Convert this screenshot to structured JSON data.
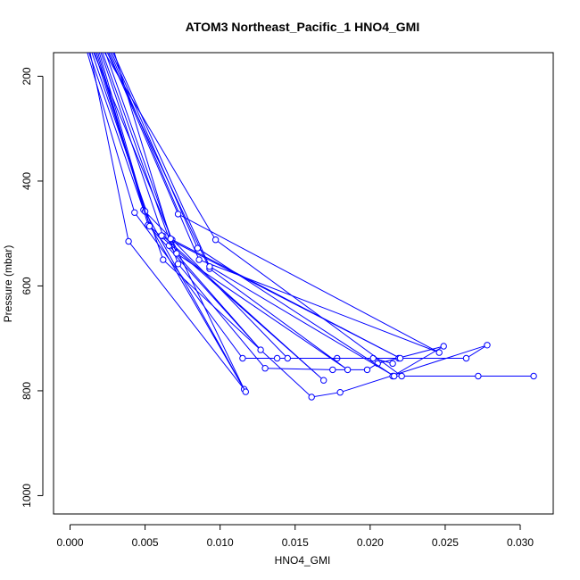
{
  "chart_data": {
    "type": "line",
    "title": "ATOM3 Northeast_Pacific_1 HNO4_GMI",
    "xlabel": "HNO4_GMI",
    "ylabel": "Pressure (mbar)",
    "xlim": [
      -0.0011,
      0.0322
    ],
    "ylim": [
      1035,
      155
    ],
    "y_reversed": true,
    "x_ticks": [
      0.0,
      0.005,
      0.01,
      0.015,
      0.02,
      0.025,
      0.03
    ],
    "x_tick_labels": [
      "0.000",
      "0.005",
      "0.010",
      "0.015",
      "0.020",
      "0.025",
      "0.030"
    ],
    "y_ticks": [
      200,
      400,
      600,
      800,
      1000
    ],
    "y_tick_labels": [
      "200",
      "400",
      "600",
      "800",
      "1000"
    ],
    "color": "#0000ff",
    "series": [
      {
        "points": [
          [
            0.0011,
            150
          ],
          [
            0.0043,
            460
          ],
          [
            0.0115,
            738
          ],
          [
            0.0138,
            738
          ],
          [
            0.0178,
            738
          ],
          [
            0.0219,
            738
          ],
          [
            0.0264,
            738
          ],
          [
            0.0278,
            713
          ],
          [
            0.018,
            803
          ],
          [
            0.0161,
            812
          ],
          [
            0.0062,
            550
          ],
          [
            0.0014,
            150
          ]
        ]
      },
      {
        "points": [
          [
            0.0012,
            150
          ],
          [
            0.0049,
            455
          ],
          [
            0.0145,
            738
          ],
          [
            0.0202,
            738
          ],
          [
            0.0215,
            748
          ]
        ]
      },
      {
        "points": [
          [
            0.0013,
            150
          ],
          [
            0.0039,
            515
          ],
          [
            0.0116,
            797
          ],
          [
            0.0068,
            512
          ],
          [
            0.0015,
            150
          ]
        ]
      },
      {
        "points": [
          [
            0.0016,
            150
          ],
          [
            0.005,
            458
          ],
          [
            0.0117,
            802
          ],
          [
            0.0053,
            484
          ],
          [
            0.0017,
            150
          ]
        ]
      },
      {
        "points": [
          [
            0.0018,
            150
          ],
          [
            0.0052,
            484
          ],
          [
            0.0127,
            722
          ],
          [
            0.0066,
            523
          ]
        ]
      },
      {
        "points": [
          [
            0.0019,
            150
          ],
          [
            0.0053,
            486
          ],
          [
            0.0169,
            780
          ],
          [
            0.0062,
            505
          ],
          [
            0.002,
            150
          ]
        ]
      },
      {
        "points": [
          [
            0.0021,
            150
          ],
          [
            0.0072,
            558
          ],
          [
            0.013,
            757
          ],
          [
            0.0175,
            760
          ],
          [
            0.0198,
            760
          ],
          [
            0.0205,
            748
          ],
          [
            0.0249,
            715
          ],
          [
            0.0215,
            772
          ],
          [
            0.0272,
            772
          ],
          [
            0.0309,
            772
          ],
          [
            0.0221,
            772
          ],
          [
            0.0097,
            512
          ],
          [
            0.0022,
            150
          ]
        ]
      },
      {
        "points": [
          [
            0.0023,
            150
          ],
          [
            0.0071,
            538
          ],
          [
            0.0185,
            760
          ],
          [
            0.0093,
            567
          ],
          [
            0.0024,
            150
          ]
        ]
      },
      {
        "points": [
          [
            0.0025,
            150
          ],
          [
            0.0072,
            463
          ],
          [
            0.0246,
            727
          ],
          [
            0.0086,
            550
          ],
          [
            0.0026,
            150
          ]
        ]
      },
      {
        "points": [
          [
            0.0027,
            150
          ],
          [
            0.0085,
            528
          ],
          [
            0.0216,
            772
          ],
          [
            0.0093,
            563
          ],
          [
            0.0028,
            150
          ]
        ]
      },
      {
        "points": [
          [
            0.0029,
            150
          ],
          [
            0.0067,
            510
          ],
          [
            0.022,
            738
          ],
          [
            0.0061,
            504
          ]
        ]
      }
    ]
  }
}
